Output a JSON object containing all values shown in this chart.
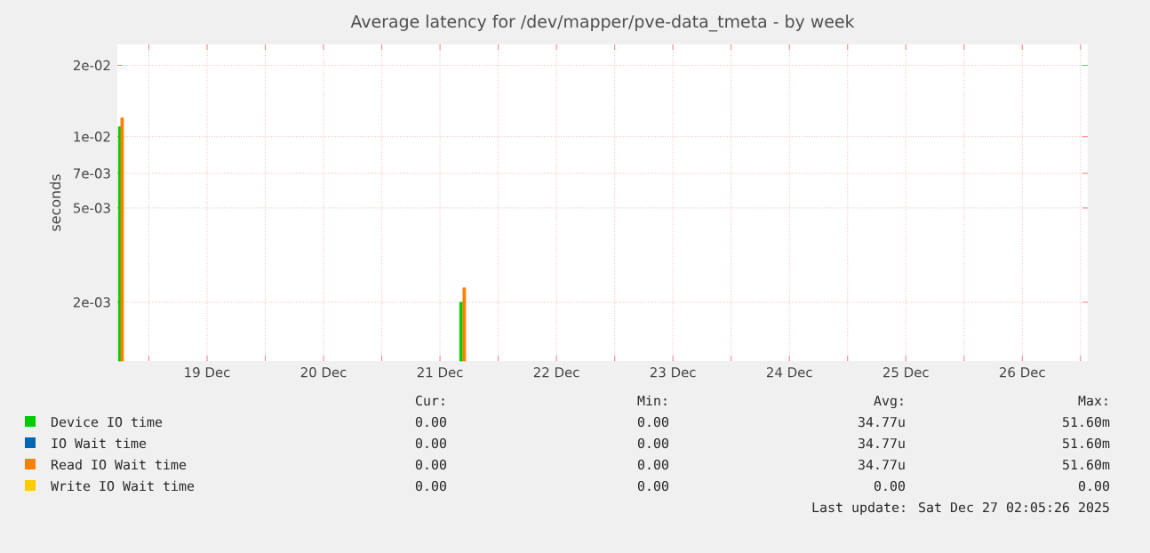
{
  "chart_data": {
    "type": "bar",
    "title": "Average latency for /dev/mapper/pve-data_tmeta - by week",
    "ylabel": "seconds",
    "x": [
      "2025-12-18T18:30",
      "2025-12-21T17:00"
    ],
    "series": [
      {
        "name": "Device IO time",
        "color": "#00cc00",
        "x": [
          "2025-12-18T18:00",
          "2025-12-21T16:20"
        ],
        "values": [
          0.011,
          0.002
        ]
      },
      {
        "name": "IO Wait time",
        "color": "#0066b3",
        "values": [
          null,
          null
        ]
      },
      {
        "name": "Read IO Wait time",
        "color": "#ff8000",
        "values": [
          0.012,
          0.0023
        ]
      },
      {
        "name": "Write IO Wait time",
        "color": "#ffcc00",
        "values": [
          null,
          null
        ]
      }
    ],
    "log": "y",
    "grid": true,
    "legend": "bottom",
    "xlim": [
      "2025-12-18T17:30",
      "2025-12-27T01:30"
    ],
    "xticks": [
      {
        "value": "2025-12-19T00:00",
        "label": null
      },
      {
        "value": "2025-12-19T12:00",
        "label": "19 Dec"
      },
      {
        "value": "2025-12-20T00:00",
        "label": null
      },
      {
        "value": "2025-12-20T12:00",
        "label": "20 Dec"
      },
      {
        "value": "2025-12-21T00:00",
        "label": null
      },
      {
        "value": "2025-12-21T12:00",
        "label": "21 Dec"
      },
      {
        "value": "2025-12-22T00:00",
        "label": null
      },
      {
        "value": "2025-12-22T12:00",
        "label": "22 Dec"
      },
      {
        "value": "2025-12-23T00:00",
        "label": null
      },
      {
        "value": "2025-12-23T12:00",
        "label": "23 Dec"
      },
      {
        "value": "2025-12-24T00:00",
        "label": null
      },
      {
        "value": "2025-12-24T12:00",
        "label": "24 Dec"
      },
      {
        "value": "2025-12-25T00:00",
        "label": null
      },
      {
        "value": "2025-12-25T12:00",
        "label": "25 Dec"
      },
      {
        "value": "2025-12-26T00:00",
        "label": null
      },
      {
        "value": "2025-12-26T12:00",
        "label": "26 Dec"
      },
      {
        "value": "2025-12-27T00:00",
        "label": null
      }
    ],
    "ylim": [
      0.00113,
      0.0245
    ],
    "yticks": [
      {
        "value": 0.002,
        "label": "2e-03"
      },
      {
        "value": 0.005,
        "label": "5e-03"
      },
      {
        "value": 0.007,
        "label": "7e-03"
      },
      {
        "value": 0.01,
        "label": "1e-02"
      },
      {
        "value": 0.02,
        "label": "2e-02"
      }
    ],
    "annotations": [
      "Cur:",
      "Min:",
      "Avg:",
      "Max:",
      "0.00",
      "0.00",
      "34.77u",
      "51.60m",
      "0.00",
      "0.00",
      "34.77u",
      "51.60m",
      "0.00",
      "0.00",
      "34.77u",
      "51.60m",
      "0.00",
      "0.00",
      "0.00",
      "0.00",
      "Last update: Sat Dec 27 02:05:26 2025"
    ]
  }
}
